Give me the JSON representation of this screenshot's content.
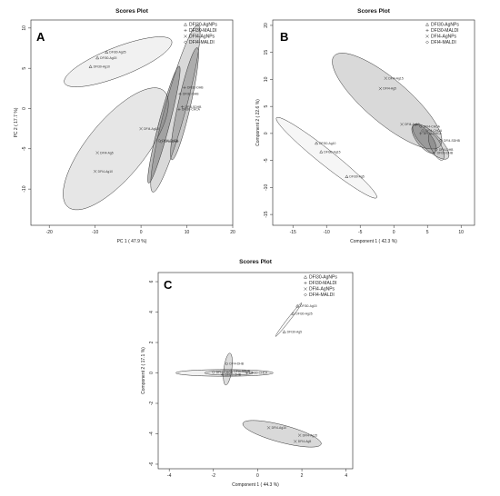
{
  "chart_data": [
    {
      "type": "scatter",
      "panel_label": "A",
      "title": "Scores Plot",
      "xlabel": "PC 1 ( 47.9 %)",
      "ylabel": "PC 2 ( 17.7 %)",
      "xlim": [
        -24,
        20
      ],
      "ylim": [
        -14.5,
        11
      ],
      "xticks": [
        -20,
        -10,
        0,
        10,
        20
      ],
      "yticks": [
        -10,
        -5,
        0,
        5,
        10
      ],
      "legend": [
        "DFI30-AgNPs",
        "DFI30-MALDI",
        "DFI4-AgNPs",
        "DFI4-MALDI"
      ],
      "legend_position": "top-right",
      "points": [
        {
          "x": -7.5,
          "y": 7.0,
          "label": "DFI30-Ag25",
          "series": 0
        },
        {
          "x": -9.5,
          "y": 6.3,
          "label": "DFI30-Ag15",
          "series": 0
        },
        {
          "x": -11,
          "y": 5.2,
          "label": "DFI30-Ag10",
          "series": 0
        },
        {
          "x": 9.5,
          "y": 2.6,
          "label": "DFI30-DHB",
          "series": 1
        },
        {
          "x": 8.5,
          "y": 1.8,
          "label": "DFI30-DHB",
          "series": 1
        },
        {
          "x": 9.0,
          "y": 0.2,
          "label": "DFI4-SDHB",
          "series": 1
        },
        {
          "x": 8.3,
          "y": -0.1,
          "label": "DFI30-CHCA",
          "series": 1
        },
        {
          "x": 0.0,
          "y": -2.5,
          "label": "DFI4-Ag15",
          "series": 2
        },
        {
          "x": -9.5,
          "y": -5.5,
          "label": "DFI4-Ag5",
          "series": 2
        },
        {
          "x": -10,
          "y": -7.8,
          "label": "DFI4-Ag10",
          "series": 2
        },
        {
          "x": 4.0,
          "y": -4.0,
          "label": "DFI4-CHCA",
          "series": 3
        },
        {
          "x": 4.4,
          "y": -4.1,
          "label": "DFI4-DHB",
          "series": 3
        }
      ],
      "ellipses": [
        {
          "cx": -5,
          "cy": 5.8,
          "rx": 12,
          "ry": 1.9,
          "angle": 12,
          "shade": 0.08
        },
        {
          "cx": 7.5,
          "cy": 0,
          "rx": 11.5,
          "ry": 2.1,
          "angle": 64,
          "shade": 0.22
        },
        {
          "cx": 9.5,
          "cy": 0.6,
          "rx": 7.5,
          "ry": 1.3,
          "angle": 68,
          "shade": 0.32
        },
        {
          "cx": -5.5,
          "cy": -5,
          "rx": 13,
          "ry": 4.5,
          "angle": 30,
          "shade": 0.14
        },
        {
          "cx": 5,
          "cy": -2,
          "rx": 8,
          "ry": 1.1,
          "angle": 65,
          "shade": 0.4
        }
      ]
    },
    {
      "type": "scatter",
      "panel_label": "B",
      "title": "Scores Plot",
      "xlabel": "Component 1 ( 42.3 %)",
      "ylabel": "Component 2 ( 22.6 %)",
      "xlim": [
        -18,
        12
      ],
      "ylim": [
        -17,
        21
      ],
      "xticks": [
        -15,
        -10,
        -5,
        0,
        5,
        10
      ],
      "yticks": [
        -15,
        -10,
        -5,
        0,
        5,
        10,
        15,
        20
      ],
      "legend": [
        "DFI30-AgNPs",
        "DFI30-MALDI",
        "DFI4-AgNPs",
        "DFI4-MALDI"
      ],
      "legend_position": "top-right",
      "points": [
        {
          "x": -1.2,
          "y": 10.2,
          "label": "DFI4-Ag15",
          "series": 2
        },
        {
          "x": -2.0,
          "y": 8.3,
          "label": "DFI4-Ag5",
          "series": 2
        },
        {
          "x": 1.2,
          "y": 1.7,
          "label": "DFI4-Ag10",
          "series": 2
        },
        {
          "x": 4.0,
          "y": 1.3,
          "label": "DFI4-CHCA",
          "series": 3
        },
        {
          "x": 4.3,
          "y": 0.5,
          "label": "DFI4-CHCA",
          "series": 3
        },
        {
          "x": 4.0,
          "y": 0.0,
          "label": "DFI30-CHCA",
          "series": 1
        },
        {
          "x": 7.0,
          "y": -1.3,
          "label": "DFI4-SDHB",
          "series": 3
        },
        {
          "x": 6.3,
          "y": -3.0,
          "label": "DFI4-DHB",
          "series": 3
        },
        {
          "x": 6.0,
          "y": -3.6,
          "label": "DFI30-DHB",
          "series": 1
        },
        {
          "x": -11.5,
          "y": -1.8,
          "label": "DFI30-Ag10",
          "series": 0
        },
        {
          "x": -10.8,
          "y": -3.4,
          "label": "DFI30-Ag15",
          "series": 0
        },
        {
          "x": -7.0,
          "y": -8.0,
          "label": "DFI30-Ag5",
          "series": 0
        }
      ],
      "ellipses": [
        {
          "cx": -1,
          "cy": 6,
          "rx": 11.5,
          "ry": 3.6,
          "angle": -48,
          "shade": 0.22
        },
        {
          "cx": 5.5,
          "cy": -1.5,
          "rx": 4,
          "ry": 1.4,
          "angle": -52,
          "shade": 0.22
        },
        {
          "cx": 4.5,
          "cy": -1,
          "rx": 3,
          "ry": 1.2,
          "angle": -60,
          "shade": 0.3
        },
        {
          "cx": 6.3,
          "cy": -2.5,
          "rx": 2.6,
          "ry": 0.8,
          "angle": -70,
          "shade": 0.1
        },
        {
          "cx": -10,
          "cy": -4.5,
          "rx": 10.5,
          "ry": 1.3,
          "angle": -45,
          "shade": 0.05
        }
      ]
    },
    {
      "type": "scatter",
      "panel_label": "C",
      "title": "Scores Plot",
      "xlabel": "Component 1 ( 44.3 %)",
      "ylabel": "Component 2 ( 17.1 %)",
      "xlim": [
        -4.5,
        4.3
      ],
      "ylim": [
        -6.3,
        6.6
      ],
      "xticks": [
        -4,
        -2,
        0,
        2,
        4
      ],
      "yticks": [
        -6,
        -4,
        -2,
        0,
        2,
        4,
        6
      ],
      "legend": [
        "DFI30-AgNPs",
        "DFI30-MALDI",
        "DFI4-AgNPs",
        "DFI4-MALDI"
      ],
      "legend_position": "top-right",
      "points": [
        {
          "x": 1.8,
          "y": 4.4,
          "label": "DFI30-Ag15",
          "series": 0
        },
        {
          "x": 1.6,
          "y": 3.9,
          "label": "DFI30-Ag25",
          "series": 0
        },
        {
          "x": 1.2,
          "y": 2.7,
          "label": "DFI30-Ag5",
          "series": 0
        },
        {
          "x": -1.4,
          "y": 0.6,
          "label": "DFI4-DHB",
          "series": 3
        },
        {
          "x": -1.2,
          "y": 0.1,
          "label": "DFI4-SDHB",
          "series": 3
        },
        {
          "x": -0.5,
          "y": 0.0,
          "label": "DFI30-CHCA",
          "series": 1
        },
        {
          "x": -2.0,
          "y": 0.05,
          "label": "DFI4-CHCA",
          "series": 3
        },
        {
          "x": -1.6,
          "y": -0.1,
          "label": "DFI30-DHB",
          "series": 1
        },
        {
          "x": 0.5,
          "y": -3.6,
          "label": "DFI4-Ag10",
          "series": 2
        },
        {
          "x": 1.9,
          "y": -4.1,
          "label": "DFI4-Ag15",
          "series": 2
        },
        {
          "x": 1.7,
          "y": -4.5,
          "label": "DFI4-Ag5",
          "series": 2
        }
      ],
      "ellipses": [
        {
          "cx": 1.4,
          "cy": 3.5,
          "rx": 1.25,
          "ry": 0.07,
          "angle": 62,
          "shade": 0.04
        },
        {
          "cx": -1.5,
          "cy": 0.0,
          "rx": 2.2,
          "ry": 0.22,
          "angle": 0,
          "shade": 0.08
        },
        {
          "cx": -1.35,
          "cy": 0.25,
          "rx": 1.05,
          "ry": 0.18,
          "angle": 85,
          "shade": 0.2
        },
        {
          "cx": -1.3,
          "cy": 0.0,
          "rx": 1.1,
          "ry": 0.15,
          "angle": 0,
          "shade": 0.05
        },
        {
          "cx": 1.1,
          "cy": -4.0,
          "rx": 1.9,
          "ry": 0.55,
          "angle": -22,
          "shade": 0.22
        }
      ]
    }
  ]
}
